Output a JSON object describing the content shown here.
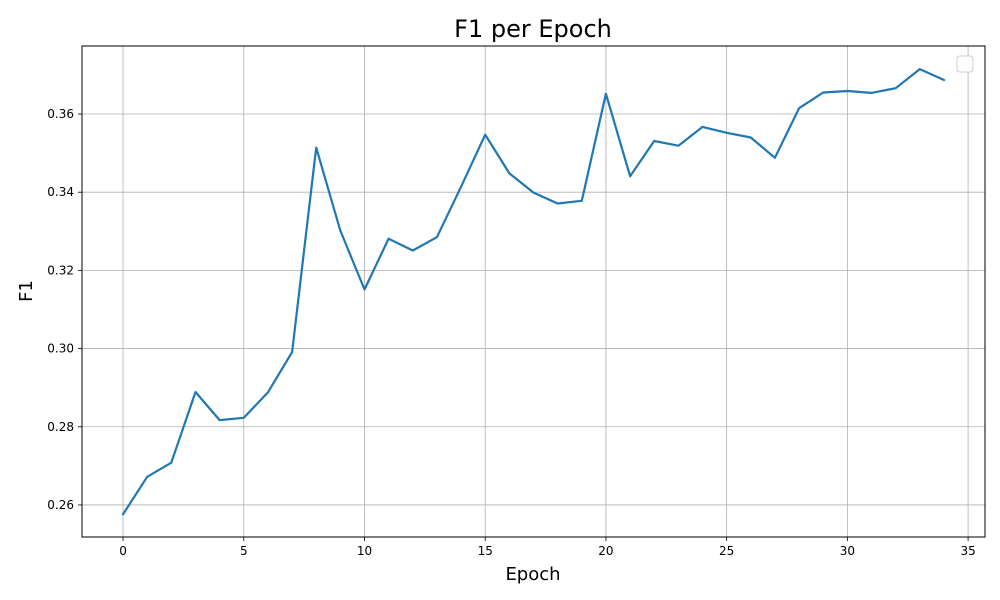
{
  "chart_data": {
    "type": "line",
    "title": "F1 per Epoch",
    "xlabel": "Epoch",
    "ylabel": "F1",
    "xlim": [
      -1.7,
      35.7
    ],
    "ylim": [
      0.2518,
      0.3774
    ],
    "xticks": [
      0,
      5,
      10,
      15,
      20,
      25,
      30,
      35
    ],
    "yticks": [
      0.26,
      0.28,
      0.3,
      0.32,
      0.34,
      0.36
    ],
    "ytick_labels": [
      "0.26",
      "0.28",
      "0.30",
      "0.32",
      "0.34",
      "0.36"
    ],
    "grid": true,
    "legend": "top-right, empty",
    "series": [
      {
        "color": "#1f77b4",
        "x": [
          0,
          1,
          2,
          3,
          4,
          5,
          6,
          7,
          8,
          9,
          10,
          11,
          12,
          13,
          14,
          15,
          16,
          17,
          18,
          19,
          20,
          21,
          22,
          23,
          24,
          25,
          26,
          27,
          28,
          29,
          30,
          31,
          32,
          33,
          34
        ],
        "y": [
          0.2576,
          0.2672,
          0.2708,
          0.2889,
          0.2817,
          0.2823,
          0.2888,
          0.2991,
          0.3514,
          0.3302,
          0.3151,
          0.3281,
          0.3251,
          0.3285,
          0.3414,
          0.3547,
          0.3448,
          0.3399,
          0.3371,
          0.3378,
          0.3652,
          0.3441,
          0.3531,
          0.3519,
          0.3567,
          0.3552,
          0.354,
          0.3488,
          0.3615,
          0.3655,
          0.3659,
          0.3654,
          0.3666,
          0.3715,
          0.3687
        ]
      }
    ]
  }
}
